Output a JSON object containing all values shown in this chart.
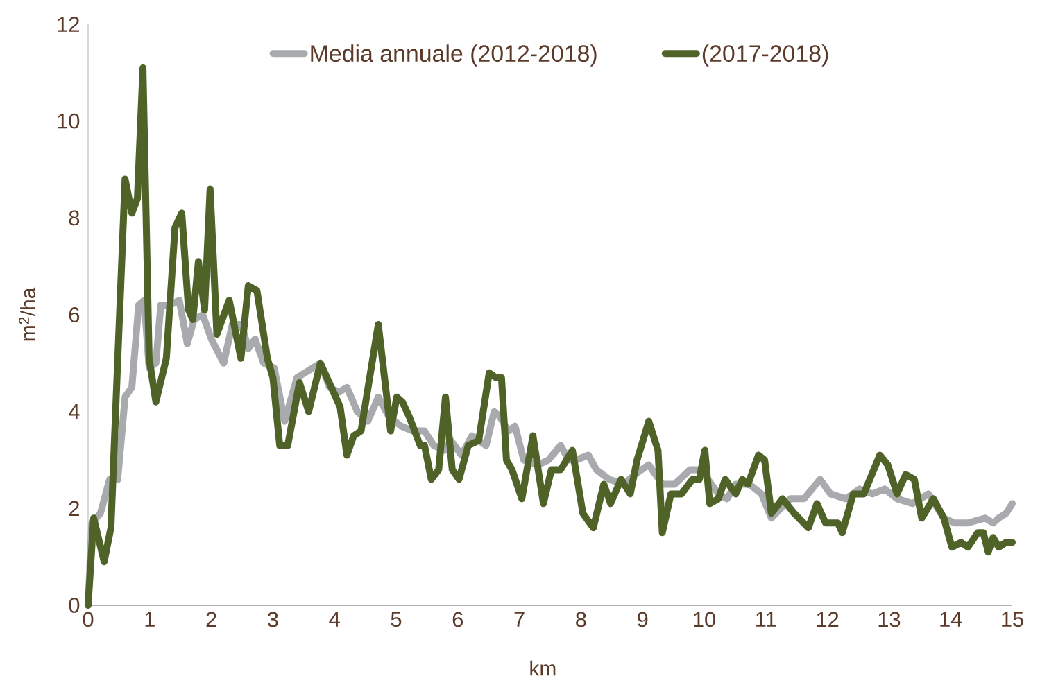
{
  "chart_data": {
    "type": "line",
    "xlabel": "km",
    "ylabel": "m$^{2}$/ha",
    "xlim": [
      0,
      15
    ],
    "ylim": [
      0,
      12
    ],
    "xticks": [
      0,
      1,
      2,
      3,
      4,
      5,
      6,
      7,
      8,
      9,
      10,
      11,
      12,
      13,
      14,
      15
    ],
    "yticks": [
      0,
      2,
      4,
      6,
      8,
      10,
      12
    ],
    "grid": false,
    "legend": "top",
    "marker": "none",
    "line_style": "solid",
    "series": [
      {
        "name": "Media annuale (2012-2018)",
        "color": "#a9aaae",
        "x": [
          0,
          0.06,
          0.2,
          0.35,
          0.48,
          0.6,
          0.71,
          0.82,
          0.91,
          0.99,
          1.1,
          1.18,
          1.33,
          1.48,
          1.61,
          1.72,
          1.86,
          2.0,
          2.2,
          2.34,
          2.49,
          2.6,
          2.71,
          2.85,
          3.02,
          3.19,
          3.39,
          3.52,
          3.77,
          3.92,
          4.07,
          4.2,
          4.37,
          4.54,
          4.71,
          4.88,
          5.08,
          5.27,
          5.46,
          5.61,
          5.78,
          5.89,
          6.06,
          6.23,
          6.46,
          6.59,
          6.68,
          6.82,
          6.93,
          7.07,
          7.3,
          7.47,
          7.67,
          7.8,
          7.92,
          8.12,
          8.25,
          8.46,
          8.7,
          8.87,
          9.1,
          9.32,
          9.52,
          9.77,
          9.94,
          10.06,
          10.23,
          10.37,
          10.51,
          10.73,
          10.93,
          11.09,
          11.24,
          11.4,
          11.62,
          11.88,
          12.05,
          12.3,
          12.52,
          12.73,
          12.93,
          13.13,
          13.38,
          13.64,
          13.89,
          14.06,
          14.28,
          14.56,
          14.69,
          14.78,
          14.9,
          15
        ],
        "values": [
          0,
          1.7,
          1.9,
          2.6,
          2.6,
          4.3,
          4.5,
          6.2,
          6.3,
          4.9,
          5.0,
          6.2,
          6.2,
          6.3,
          5.4,
          5.9,
          6.0,
          5.5,
          5.0,
          5.8,
          5.8,
          5.3,
          5.5,
          5.0,
          4.9,
          3.8,
          4.7,
          4.8,
          5.0,
          4.5,
          4.4,
          4.5,
          4.0,
          3.8,
          4.3,
          3.9,
          3.7,
          3.6,
          3.6,
          3.3,
          3.2,
          3.4,
          3.1,
          3.5,
          3.3,
          4.0,
          3.9,
          3.6,
          3.7,
          3.0,
          2.9,
          3.0,
          3.3,
          3.0,
          3.0,
          3.1,
          2.8,
          2.6,
          2.5,
          2.7,
          2.9,
          2.5,
          2.5,
          2.8,
          2.8,
          2.6,
          2.3,
          2.2,
          2.5,
          2.5,
          2.3,
          1.8,
          2.0,
          2.2,
          2.2,
          2.6,
          2.3,
          2.2,
          2.4,
          2.3,
          2.4,
          2.2,
          2.1,
          2.3,
          1.8,
          1.7,
          1.7,
          1.8,
          1.7,
          1.8,
          1.9,
          2.1
        ]
      },
      {
        "name": "(2017-2018)",
        "color": "#4f6228",
        "x": [
          0,
          0.09,
          0.26,
          0.37,
          0.6,
          0.71,
          0.8,
          0.89,
          0.99,
          1.1,
          1.27,
          1.41,
          1.52,
          1.63,
          1.7,
          1.79,
          1.89,
          1.98,
          2.09,
          2.29,
          2.48,
          2.6,
          2.74,
          2.91,
          3.0,
          3.11,
          3.24,
          3.43,
          3.58,
          3.77,
          4.09,
          4.2,
          4.31,
          4.43,
          4.57,
          4.71,
          4.82,
          4.91,
          5.01,
          5.1,
          5.21,
          5.39,
          5.46,
          5.57,
          5.69,
          5.8,
          5.91,
          6.02,
          6.17,
          6.34,
          6.51,
          6.62,
          6.71,
          6.79,
          6.88,
          7.04,
          7.22,
          7.39,
          7.52,
          7.67,
          7.86,
          7.94,
          8.03,
          8.2,
          8.37,
          8.48,
          8.65,
          8.8,
          8.91,
          9.1,
          9.25,
          9.32,
          9.46,
          9.63,
          9.81,
          9.92,
          10.01,
          10.09,
          10.23,
          10.34,
          10.51,
          10.62,
          10.71,
          10.88,
          10.98,
          11.09,
          11.27,
          11.46,
          11.69,
          11.83,
          11.97,
          12.17,
          12.24,
          12.42,
          12.59,
          12.85,
          12.98,
          13.13,
          13.27,
          13.41,
          13.53,
          13.72,
          13.89,
          14.02,
          14.17,
          14.28,
          14.44,
          14.53,
          14.61,
          14.69,
          14.78,
          14.9,
          15
        ],
        "values": [
          0,
          1.8,
          0.9,
          1.6,
          8.8,
          8.1,
          8.4,
          11.1,
          5.1,
          4.2,
          5.1,
          7.8,
          8.1,
          6.1,
          5.9,
          7.1,
          6.1,
          8.6,
          5.6,
          6.3,
          5.1,
          6.6,
          6.5,
          5.1,
          4.7,
          3.3,
          3.3,
          4.6,
          4.0,
          5.0,
          4.1,
          3.1,
          3.5,
          3.6,
          4.7,
          5.8,
          4.6,
          3.6,
          4.3,
          4.2,
          3.9,
          3.3,
          3.3,
          2.6,
          2.8,
          4.3,
          2.8,
          2.6,
          3.3,
          3.4,
          4.8,
          4.7,
          4.7,
          3.0,
          2.8,
          2.2,
          3.5,
          2.1,
          2.8,
          2.8,
          3.2,
          2.6,
          1.9,
          1.6,
          2.5,
          2.1,
          2.6,
          2.3,
          3.0,
          3.8,
          3.2,
          1.5,
          2.3,
          2.3,
          2.6,
          2.6,
          3.2,
          2.1,
          2.2,
          2.6,
          2.3,
          2.6,
          2.5,
          3.1,
          3.0,
          1.9,
          2.2,
          1.9,
          1.6,
          2.1,
          1.7,
          1.7,
          1.5,
          2.3,
          2.3,
          3.1,
          2.9,
          2.3,
          2.7,
          2.6,
          1.8,
          2.2,
          1.8,
          1.2,
          1.3,
          1.2,
          1.5,
          1.5,
          1.1,
          1.4,
          1.2,
          1.3,
          1.3
        ]
      }
    ]
  }
}
